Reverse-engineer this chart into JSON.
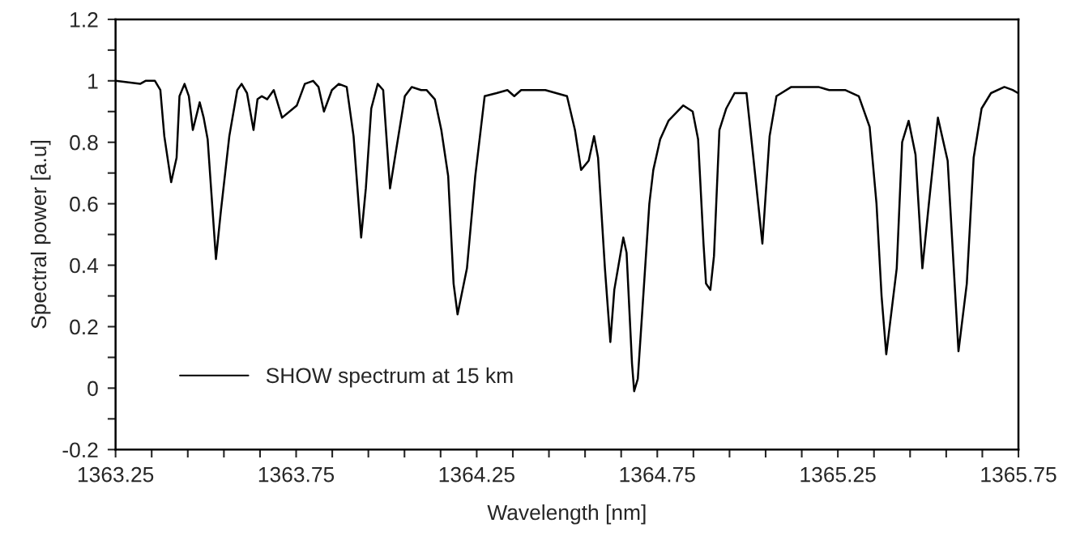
{
  "chart_data": {
    "type": "line",
    "xlabel": "Wavelength [nm]",
    "ylabel": "Spectral power [a.u]",
    "xlim": [
      1363.25,
      1365.75
    ],
    "xticks": [
      1363.25,
      {
        "value": 1363.35,
        "label": null
      },
      {
        "value": 1363.45,
        "label": null
      },
      {
        "value": 1363.55,
        "label": null
      },
      {
        "value": 1363.65,
        "label": null
      },
      1363.75,
      {
        "value": 1363.85,
        "label": null
      },
      {
        "value": 1363.95,
        "label": null
      },
      {
        "value": 1364.05,
        "label": null
      },
      {
        "value": 1364.15,
        "label": null
      },
      1364.25,
      {
        "value": 1364.35,
        "label": null
      },
      {
        "value": 1364.45,
        "label": null
      },
      {
        "value": 1364.55,
        "label": null
      },
      {
        "value": 1364.65,
        "label": null
      },
      1364.75,
      {
        "value": 1364.85,
        "label": null
      },
      {
        "value": 1364.95,
        "label": null
      },
      {
        "value": 1365.05,
        "label": null
      },
      {
        "value": 1365.15,
        "label": null
      },
      1365.25,
      {
        "value": 1365.35,
        "label": null
      },
      {
        "value": 1365.45,
        "label": null
      },
      {
        "value": 1365.55,
        "label": null
      },
      {
        "value": 1365.65,
        "label": null
      },
      1365.75
    ],
    "ylim": [
      -0.2,
      1.2
    ],
    "yticks": [
      -0.2,
      {
        "value": -0.1,
        "label": null
      },
      0,
      {
        "value": 0.1,
        "label": null
      },
      0.2,
      {
        "value": 0.3,
        "label": null
      },
      0.4,
      {
        "value": 0.5,
        "label": null
      },
      0.6,
      {
        "value": 0.7,
        "label": null
      },
      0.8,
      {
        "value": 0.9,
        "label": null
      },
      1,
      {
        "value": 1.1,
        "label": null
      },
      1.2
    ],
    "grid": false,
    "legend": "bottom left",
    "marker": "none",
    "line_style": "solid",
    "series": [
      {
        "name": "SHOW spectrum at 15 km",
        "color": "#000000",
        "x": [
          1363.25,
          1363.318,
          1363.333,
          1363.359,
          1363.374,
          1363.385,
          1363.404,
          1363.419,
          1363.427,
          1363.441,
          1363.453,
          1363.464,
          1363.483,
          1363.494,
          1363.505,
          1363.528,
          1363.542,
          1363.565,
          1363.587,
          1363.599,
          1363.614,
          1363.632,
          1363.643,
          1363.655,
          1363.67,
          1363.688,
          1363.711,
          1363.752,
          1363.774,
          1363.797,
          1363.812,
          1363.827,
          1363.849,
          1363.868,
          1363.89,
          1363.909,
          1363.93,
          1363.943,
          1363.958,
          1363.976,
          1363.991,
          1364.01,
          1364.029,
          1364.051,
          1364.07,
          1364.096,
          1364.111,
          1364.134,
          1364.152,
          1364.171,
          1364.186,
          1364.197,
          1364.223,
          1364.246,
          1364.272,
          1364.305,
          1364.335,
          1364.354,
          1364.373,
          1364.44,
          1364.5,
          1364.522,
          1364.539,
          1364.56,
          1364.575,
          1364.586,
          1364.605,
          1364.62,
          1364.631,
          1364.65,
          1364.656,
          1364.665,
          1364.68,
          1364.686,
          1364.696,
          1364.709,
          1364.728,
          1364.739,
          1364.758,
          1364.781,
          1364.822,
          1364.848,
          1364.863,
          1364.878,
          1364.885,
          1364.897,
          1364.907,
          1364.922,
          1364.941,
          1364.964,
          1364.997,
          1365.016,
          1365.041,
          1365.061,
          1365.08,
          1365.121,
          1365.196,
          1365.226,
          1365.27,
          1365.308,
          1365.338,
          1365.357,
          1365.371,
          1365.384,
          1365.413,
          1365.428,
          1365.446,
          1365.465,
          1365.484,
          1365.502,
          1365.527,
          1365.554,
          1365.584,
          1365.607,
          1365.626,
          1365.648,
          1365.674,
          1365.711,
          1365.734,
          1365.749
        ],
        "values": [
          1.0,
          0.99,
          1.0,
          1.0,
          0.97,
          0.82,
          0.67,
          0.75,
          0.95,
          0.99,
          0.95,
          0.84,
          0.93,
          0.88,
          0.81,
          0.42,
          0.58,
          0.82,
          0.97,
          0.99,
          0.96,
          0.84,
          0.94,
          0.95,
          0.94,
          0.97,
          0.88,
          0.92,
          0.99,
          1.0,
          0.98,
          0.9,
          0.97,
          0.99,
          0.98,
          0.82,
          0.49,
          0.65,
          0.91,
          0.99,
          0.97,
          0.65,
          0.79,
          0.95,
          0.98,
          0.97,
          0.97,
          0.94,
          0.84,
          0.69,
          0.34,
          0.24,
          0.39,
          0.69,
          0.95,
          0.96,
          0.97,
          0.95,
          0.97,
          0.97,
          0.95,
          0.84,
          0.71,
          0.74,
          0.82,
          0.75,
          0.39,
          0.15,
          0.32,
          0.45,
          0.49,
          0.44,
          0.08,
          -0.01,
          0.03,
          0.26,
          0.6,
          0.71,
          0.81,
          0.87,
          0.92,
          0.9,
          0.81,
          0.47,
          0.34,
          0.32,
          0.43,
          0.84,
          0.91,
          0.96,
          0.96,
          0.75,
          0.47,
          0.82,
          0.95,
          0.98,
          0.98,
          0.97,
          0.97,
          0.95,
          0.85,
          0.6,
          0.3,
          0.11,
          0.39,
          0.8,
          0.87,
          0.76,
          0.39,
          0.6,
          0.88,
          0.74,
          0.12,
          0.34,
          0.75,
          0.91,
          0.96,
          0.98,
          0.97,
          0.96
        ]
      }
    ]
  }
}
